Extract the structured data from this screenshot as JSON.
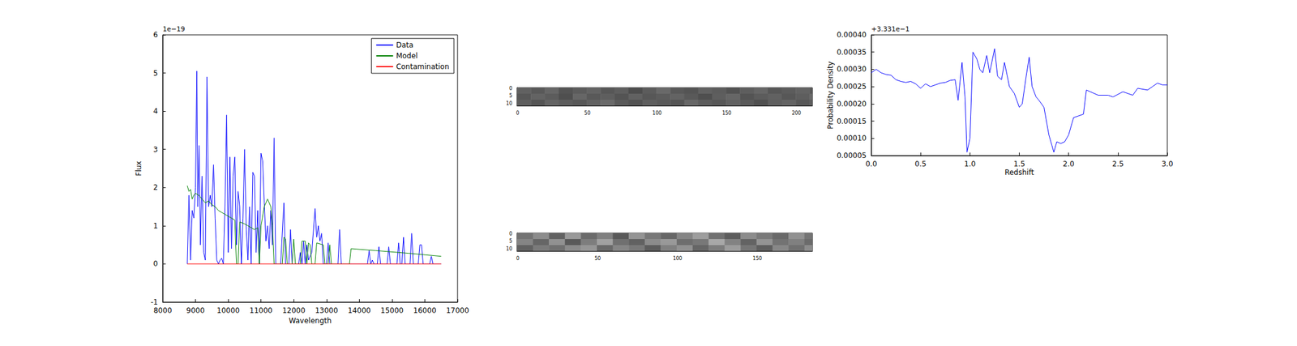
{
  "chart_data": [
    {
      "type": "line",
      "xlabel": "Wavelength",
      "ylabel": "Flux",
      "annotations": [
        "1e−19"
      ],
      "xlim": [
        8000,
        17000
      ],
      "xticks": [
        8000,
        9000,
        10000,
        11000,
        12000,
        13000,
        14000,
        15000,
        16000,
        17000
      ],
      "ylim": [
        -1,
        6
      ],
      "yticks": [
        -1,
        0,
        1,
        2,
        3,
        4,
        5,
        6
      ],
      "legend": "upper right",
      "grid": false,
      "series": [
        {
          "name": "Data",
          "color": "#0000ff",
          "x": [
            8750,
            8800,
            8850,
            8900,
            8950,
            9000,
            9040,
            9070,
            9110,
            9150,
            9200,
            9250,
            9300,
            9350,
            9400,
            9450,
            9500,
            9550,
            9600,
            9650,
            9700,
            9750,
            9800,
            9850,
            9900,
            9950,
            10000,
            10050,
            10100,
            10150,
            10200,
            10250,
            10300,
            10350,
            10400,
            10450,
            10500,
            10550,
            10600,
            10650,
            10700,
            10750,
            10800,
            10850,
            10900,
            10950,
            11000,
            11050,
            11100,
            11150,
            11200,
            11250,
            11300,
            11350,
            11400,
            11450,
            11600,
            11700,
            11750,
            11850,
            11900,
            11950,
            12150,
            12200,
            12250,
            12300,
            12350,
            12400,
            12450,
            12550,
            12650,
            12700,
            12750,
            12800,
            12850,
            12900,
            13000,
            13050,
            13100,
            13350,
            13400,
            13450,
            14250,
            14300,
            14350,
            14400,
            14450,
            14550,
            14600,
            14650,
            14850,
            14900,
            14950,
            15150,
            15200,
            15250,
            15300,
            15350,
            15400,
            15550,
            15600,
            15650,
            15800,
            15850,
            15900,
            15950,
            16150,
            16200,
            16250,
            16500
          ],
          "values": [
            0,
            1.8,
            0.1,
            1.4,
            1.2,
            2.0,
            5.05,
            1.5,
            3.1,
            0.5,
            2.3,
            0.3,
            0.1,
            4.9,
            1.5,
            1.8,
            1.5,
            2.6,
            1.2,
            0.1,
            0.0,
            0.1,
            0.15,
            0.0,
            1.5,
            3.9,
            0.3,
            2.8,
            0.4,
            2.3,
            2.8,
            0.5,
            1.9,
            1.5,
            0.0,
            1.2,
            3.0,
            0.9,
            0.1,
            1.5,
            0.0,
            2.4,
            2.3,
            0.3,
            1.4,
            0.0,
            2.9,
            2.7,
            1.6,
            0.6,
            1.0,
            0.4,
            1.4,
            0.5,
            3.3,
            0.0,
            0.0,
            1.6,
            0.0,
            0.0,
            0.9,
            0.0,
            0.0,
            0.3,
            0.0,
            0.6,
            0.0,
            0.5,
            0.1,
            0.3,
            1.45,
            0.7,
            1.0,
            0.6,
            0.8,
            0.0,
            0.0,
            0.55,
            0.0,
            0.0,
            0.9,
            0.0,
            0.0,
            0.35,
            0.0,
            0.1,
            0.0,
            0.0,
            0.45,
            0.0,
            0.0,
            0.45,
            0.0,
            0.0,
            0.55,
            0.0,
            0.0,
            0.7,
            0.0,
            0.0,
            0.8,
            0.0,
            0.0,
            0.5,
            0.5,
            0.0,
            0.0,
            0.2,
            0.0,
            0.0
          ]
        },
        {
          "name": "Model",
          "color": "#008000",
          "x": [
            8750,
            8800,
            8850,
            8900,
            8950,
            9000,
            9100,
            9200,
            9300,
            9400,
            9500,
            9600,
            9700,
            9800,
            9900,
            10000,
            10100,
            10200,
            10250,
            10300,
            10350,
            10500,
            10600,
            10700,
            10800,
            10900,
            10950,
            11000,
            11100,
            11200,
            11300,
            11350,
            11400,
            11650,
            11700,
            11750,
            11800,
            11950,
            12000,
            12050,
            12200,
            12250,
            12350,
            12400,
            12450,
            12500,
            12550,
            12650,
            12700,
            12900,
            12950,
            13050,
            13100,
            13150,
            13700,
            13750,
            14500,
            15500,
            16500
          ],
          "values": [
            2.05,
            1.9,
            1.95,
            1.7,
            1.8,
            1.85,
            1.8,
            1.7,
            1.6,
            1.65,
            1.55,
            1.5,
            1.4,
            1.35,
            1.3,
            1.25,
            1.2,
            1.15,
            0.0,
            0.0,
            1.1,
            1.05,
            1.0,
            0.95,
            0.9,
            0.95,
            0.0,
            1.0,
            1.5,
            1.7,
            1.5,
            1.0,
            0.0,
            0.0,
            0.7,
            0.65,
            0.0,
            0.0,
            0.65,
            0.0,
            0.0,
            0.6,
            0.6,
            0.0,
            0.55,
            0.5,
            0.0,
            0.0,
            0.55,
            0.5,
            0.0,
            0.0,
            0.5,
            0.0,
            0.0,
            0.4,
            0.35,
            0.28,
            0.2
          ]
        },
        {
          "name": "Contamination",
          "color": "#ff0000",
          "x": [
            8750,
            16500
          ],
          "values": [
            0,
            0
          ]
        }
      ]
    },
    {
      "type": "heatmap",
      "xlim": [
        -0.5,
        211.5
      ],
      "ylim": [
        -0.5,
        11.5
      ],
      "xticks": [
        0,
        50,
        100,
        150,
        200
      ],
      "yticks": [
        0,
        5,
        10
      ],
      "clim": [
        0,
        1
      ],
      "x_edges": [
        -0.5,
        9.5,
        19.5,
        29.5,
        39.5,
        49.5,
        59.5,
        69.5,
        79.5,
        89.5,
        99.5,
        109.5,
        119.5,
        129.5,
        139.5,
        149.5,
        159.5,
        169.5,
        179.5,
        189.5,
        199.5,
        209.5,
        211.5
      ],
      "y_edges": [
        -0.5,
        3.5,
        7.5,
        11.5
      ],
      "cells": [
        [
          0.38,
          0.35,
          0.4,
          0.33,
          0.36,
          0.39,
          0.34,
          0.37,
          0.3,
          0.36,
          0.41,
          0.35,
          0.33,
          0.38,
          0.36,
          0.32,
          0.37,
          0.4,
          0.34,
          0.36,
          0.39,
          0.35
        ],
        [
          0.34,
          0.39,
          0.36,
          0.31,
          0.4,
          0.35,
          0.37,
          0.33,
          0.38,
          0.34,
          0.36,
          0.39,
          0.35,
          0.31,
          0.37,
          0.4,
          0.33,
          0.36,
          0.38,
          0.34,
          0.37,
          0.41
        ],
        [
          0.37,
          0.33,
          0.39,
          0.36,
          0.34,
          0.38,
          0.41,
          0.35,
          0.32,
          0.37,
          0.35,
          0.33,
          0.4,
          0.36,
          0.34,
          0.38,
          0.35,
          0.31,
          0.37,
          0.39,
          0.34,
          0.36
        ]
      ]
    },
    {
      "type": "heatmap",
      "xlim": [
        -0.5,
        184.5
      ],
      "ylim": [
        -0.5,
        11.5
      ],
      "xticks": [
        0,
        50,
        100,
        150
      ],
      "yticks": [
        0,
        5,
        10
      ],
      "clim": [
        0,
        1
      ],
      "x_edges": [
        -0.5,
        9.5,
        19.5,
        29.5,
        39.5,
        49.5,
        59.5,
        69.5,
        79.5,
        89.5,
        99.5,
        109.5,
        119.5,
        129.5,
        139.5,
        149.5,
        159.5,
        169.5,
        179.5,
        184.5
      ],
      "y_edges": [
        -0.5,
        3.5,
        7.5,
        11.5
      ],
      "cells": [
        [
          0.45,
          0.55,
          0.38,
          0.6,
          0.42,
          0.5,
          0.35,
          0.58,
          0.47,
          0.4,
          0.52,
          0.62,
          0.44,
          0.36,
          0.55,
          0.48,
          0.41,
          0.57,
          0.46
        ],
        [
          0.52,
          0.4,
          0.57,
          0.35,
          0.49,
          0.63,
          0.44,
          0.38,
          0.55,
          0.6,
          0.43,
          0.47,
          0.66,
          0.51,
          0.39,
          0.58,
          0.45,
          0.5,
          0.42
        ],
        [
          0.38,
          0.48,
          0.44,
          0.54,
          0.59,
          0.41,
          0.52,
          0.47,
          0.36,
          0.5,
          0.57,
          0.4,
          0.49,
          0.61,
          0.46,
          0.37,
          0.53,
          0.44,
          0.55
        ]
      ]
    },
    {
      "type": "line",
      "xlabel": "Redshift",
      "ylabel": "Probability Density",
      "annotations": [
        "+3.331e−1"
      ],
      "xlim": [
        0,
        3
      ],
      "xticks": [
        {
          "value": 0,
          "label": "0.0"
        },
        0.5,
        {
          "value": 1,
          "label": "1.0"
        },
        1.5,
        {
          "value": 2,
          "label": "2.0"
        },
        2.5,
        {
          "value": 3,
          "label": "3.0"
        }
      ],
      "ylim": [
        5e-05,
        0.0004
      ],
      "yticks": [
        5e-05,
        {
          "value": 0.0001,
          "label": "0.00010"
        },
        0.00015,
        {
          "value": 0.0002,
          "label": "0.00020"
        },
        0.00025,
        {
          "value": 0.0003,
          "label": "0.00030"
        },
        0.00035,
        {
          "value": 0.0004,
          "label": "0.00040"
        }
      ],
      "grid": false,
      "series": [
        {
          "color": "#0000ff",
          "x": [
            0.0,
            0.05,
            0.1,
            0.15,
            0.2,
            0.25,
            0.3,
            0.35,
            0.4,
            0.45,
            0.5,
            0.55,
            0.6,
            0.65,
            0.7,
            0.75,
            0.8,
            0.85,
            0.88,
            0.92,
            0.95,
            0.97,
            1.0,
            1.03,
            1.07,
            1.1,
            1.13,
            1.17,
            1.2,
            1.25,
            1.28,
            1.32,
            1.35,
            1.4,
            1.45,
            1.5,
            1.53,
            1.57,
            1.6,
            1.63,
            1.67,
            1.7,
            1.75,
            1.8,
            1.85,
            1.88,
            1.92,
            1.96,
            2.0,
            2.05,
            2.1,
            2.15,
            2.18,
            2.22,
            2.3,
            2.4,
            2.45,
            2.55,
            2.65,
            2.7,
            2.8,
            2.85,
            2.9,
            2.95,
            3.0
          ],
          "values": [
            0.00029,
            0.0003,
            0.00029,
            0.000285,
            0.000283,
            0.00027,
            0.000265,
            0.000262,
            0.000265,
            0.000258,
            0.000245,
            0.000258,
            0.00025,
            0.000255,
            0.00026,
            0.000262,
            0.000268,
            0.00027,
            0.00021,
            0.00032,
            0.00022,
            6e-05,
            0.0001,
            0.00035,
            0.00033,
            0.0003,
            0.00029,
            0.00034,
            0.00029,
            0.00036,
            0.00028,
            0.00027,
            0.00032,
            0.00025,
            0.00023,
            0.00019,
            0.0002,
            0.00028,
            0.000335,
            0.00025,
            0.00022,
            0.00021,
            0.00019,
            0.00011,
            6e-05,
            9e-05,
            8.5e-05,
            9e-05,
            0.00011,
            0.00016,
            0.000165,
            0.00017,
            0.00024,
            0.000235,
            0.000225,
            0.000225,
            0.00022,
            0.000235,
            0.000225,
            0.000245,
            0.00024,
            0.00025,
            0.00026,
            0.000255,
            0.000255
          ]
        }
      ]
    }
  ]
}
